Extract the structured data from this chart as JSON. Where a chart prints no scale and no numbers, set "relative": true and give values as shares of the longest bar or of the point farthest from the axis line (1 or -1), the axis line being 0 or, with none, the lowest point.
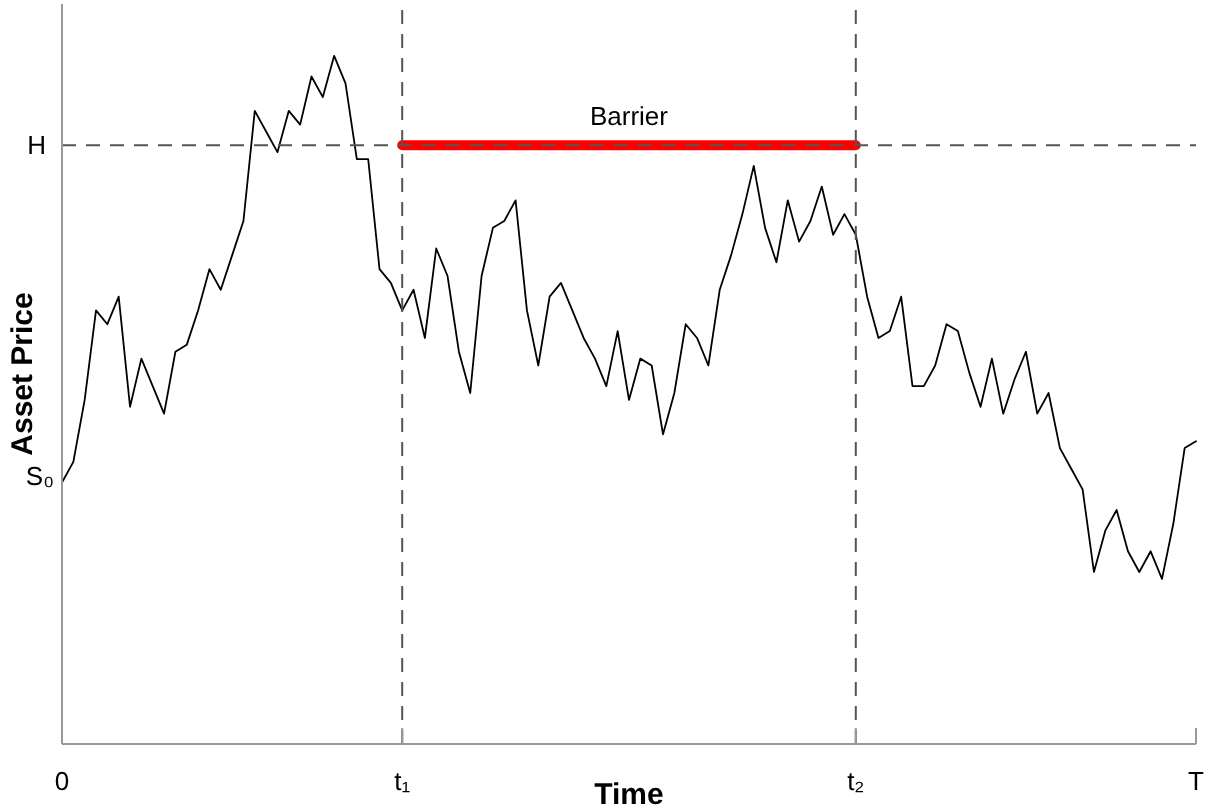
{
  "chart_data": {
    "type": "line",
    "xlabel": "Time",
    "ylabel": "Asset Price",
    "relative": true,
    "categories": [
      "0",
      null,
      null,
      null,
      null,
      null,
      null,
      null,
      null,
      null,
      null,
      null,
      null,
      null,
      null,
      null,
      null,
      null,
      null,
      null,
      null,
      null,
      null,
      null,
      null,
      null,
      null,
      null,
      null,
      null,
      "t₁",
      null,
      null,
      null,
      null,
      null,
      null,
      null,
      null,
      null,
      null,
      null,
      null,
      null,
      null,
      null,
      null,
      null,
      null,
      null,
      null,
      null,
      null,
      null,
      null,
      null,
      null,
      null,
      null,
      null,
      null,
      null,
      null,
      null,
      null,
      null,
      null,
      null,
      null,
      null,
      "t₂",
      null,
      null,
      null,
      null,
      null,
      null,
      null,
      null,
      null,
      null,
      null,
      null,
      null,
      null,
      null,
      null,
      null,
      null,
      null,
      null,
      null,
      null,
      null,
      null,
      null,
      null,
      null,
      null,
      null,
      "T"
    ],
    "ref_lines": [
      {
        "axis": "y",
        "value": 0.87,
        "label": "H",
        "color": "#555555",
        "line_style": "dashed"
      },
      {
        "axis": "x",
        "value": "t₁",
        "color": "#555555",
        "line_style": "dashed"
      },
      {
        "axis": "x",
        "value": "t₂",
        "color": "#555555",
        "line_style": "dashed"
      }
    ],
    "annotations": [
      {
        "text": "Barrier",
        "y": 0.87
      },
      {
        "text": "S₀",
        "x": "0",
        "y": 0.39
      }
    ],
    "series": [
      {
        "color": "#ff0000",
        "values": [
          null,
          null,
          null,
          null,
          null,
          null,
          null,
          null,
          null,
          null,
          null,
          null,
          null,
          null,
          null,
          null,
          null,
          null,
          null,
          null,
          null,
          null,
          null,
          null,
          null,
          null,
          null,
          null,
          null,
          null,
          0.87,
          0.87,
          0.87,
          0.87,
          0.87,
          0.87,
          0.87,
          0.87,
          0.87,
          0.87,
          0.87,
          0.87,
          0.87,
          0.87,
          0.87,
          0.87,
          0.87,
          0.87,
          0.87,
          0.87,
          0.87,
          0.87,
          0.87,
          0.87,
          0.87,
          0.87,
          0.87,
          0.87,
          0.87,
          0.87,
          0.87,
          0.87,
          0.87,
          0.87,
          0.87,
          0.87,
          0.87,
          0.87,
          0.87,
          0.87,
          0.87,
          null,
          null,
          null,
          null,
          null,
          null,
          null,
          null,
          null,
          null,
          null,
          null,
          null,
          null,
          null,
          null,
          null,
          null,
          null,
          null,
          null,
          null,
          null,
          null,
          null,
          null,
          null,
          null,
          null,
          null
        ]
      },
      {
        "color": "#000000",
        "values": [
          0.38,
          0.41,
          0.5,
          0.63,
          0.61,
          0.65,
          0.49,
          0.56,
          0.52,
          0.48,
          0.57,
          0.58,
          0.63,
          0.69,
          0.66,
          0.71,
          0.76,
          0.92,
          0.89,
          0.86,
          0.92,
          0.9,
          0.97,
          0.94,
          1.0,
          0.96,
          0.85,
          0.85,
          0.69,
          0.67,
          0.63,
          0.66,
          0.59,
          0.72,
          0.68,
          0.57,
          0.51,
          0.68,
          0.75,
          0.76,
          0.79,
          0.63,
          0.55,
          0.65,
          0.67,
          0.63,
          0.59,
          0.56,
          0.52,
          0.6,
          0.5,
          0.56,
          0.55,
          0.45,
          0.51,
          0.61,
          0.59,
          0.55,
          0.66,
          0.71,
          0.77,
          0.84,
          0.75,
          0.7,
          0.79,
          0.73,
          0.76,
          0.81,
          0.74,
          0.77,
          0.74,
          0.65,
          0.59,
          0.6,
          0.65,
          0.52,
          0.52,
          0.55,
          0.61,
          0.6,
          0.54,
          0.49,
          0.56,
          0.48,
          0.53,
          0.57,
          0.48,
          0.51,
          0.43,
          0.4,
          0.37,
          0.25,
          0.31,
          0.34,
          0.28,
          0.25,
          0.28,
          0.24,
          0.32,
          0.43,
          0.44
        ]
      }
    ]
  }
}
